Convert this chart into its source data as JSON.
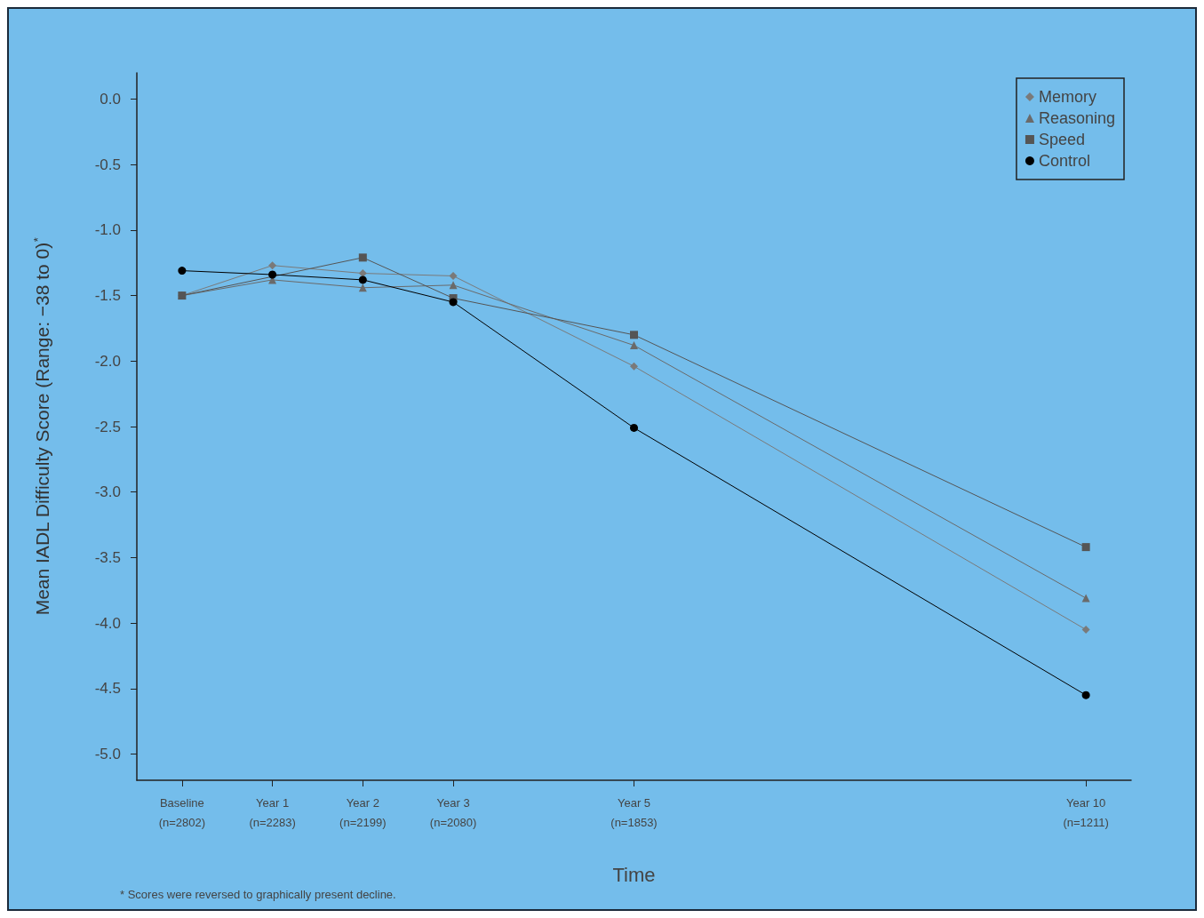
{
  "chart_data": {
    "type": "line",
    "xlabel": "Time",
    "ylabel": "Mean IADL Difficulty Score (Range: −38 to 0)$^{*}$",
    "annotations": [
      "* Scores were reversed to graphically present decline."
    ],
    "categories": [
      "Baseline\n(n=2802)",
      "Year 1\n(n=2283)",
      "Year 2\n(n=2199)",
      "Year 3\n(n=2080)",
      null,
      "Year 5\n(n=1853)",
      null,
      null,
      null,
      null,
      "Year 10\n(n=1211)"
    ],
    "ylim": [
      -5.2,
      0.2
    ],
    "yticks": [
      {
        "value": 0,
        "label": "0.0"
      },
      -0.5,
      {
        "value": -1,
        "label": "-1.0"
      },
      -1.5,
      {
        "value": -2,
        "label": "-2.0"
      },
      -2.5,
      {
        "value": -3,
        "label": "-3.0"
      },
      -3.5,
      {
        "value": -4,
        "label": "-4.0"
      },
      -4.5,
      {
        "value": -5,
        "label": "-5.0"
      }
    ],
    "grid": false,
    "legend": "top right",
    "line_style": "solid",
    "series": [
      {
        "name": "Memory",
        "color": "#7a7a7a",
        "marker": "diamond",
        "values": [
          -1.5,
          -1.27,
          -1.33,
          -1.35,
          null,
          -2.04,
          null,
          null,
          null,
          null,
          -4.05
        ]
      },
      {
        "name": "Reasoning",
        "color": "#6a6a6a",
        "marker": "triangle",
        "values": [
          -1.5,
          -1.38,
          -1.44,
          -1.42,
          null,
          -1.88,
          null,
          null,
          null,
          null,
          -3.81
        ]
      },
      {
        "name": "Speed",
        "color": "#555555",
        "marker": "square",
        "values": [
          -1.5,
          null,
          -1.21,
          -1.52,
          null,
          -1.8,
          null,
          null,
          null,
          null,
          -3.42
        ]
      },
      {
        "name": "Control",
        "color": "#000000",
        "marker": "circle",
        "values": [
          -1.31,
          -1.34,
          -1.38,
          -1.55,
          null,
          -2.51,
          null,
          null,
          null,
          null,
          -4.55
        ]
      }
    ]
  }
}
